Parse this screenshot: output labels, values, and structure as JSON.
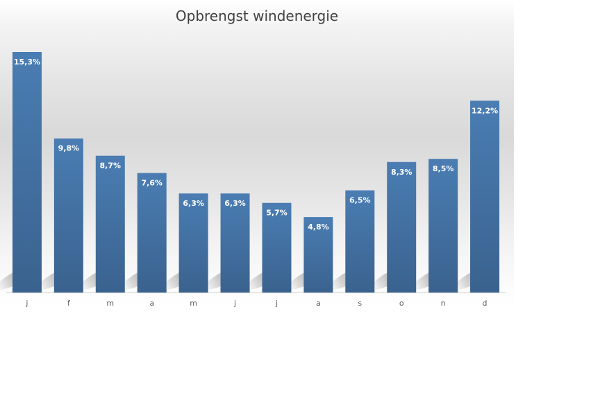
{
  "chart_data": {
    "type": "bar",
    "title": "Opbrengst windenergie",
    "xlabel": "",
    "ylabel": "",
    "categories": [
      "j",
      "f",
      "m",
      "a",
      "m",
      "j",
      "j",
      "a",
      "s",
      "o",
      "n",
      "d"
    ],
    "values": [
      15.3,
      9.8,
      8.7,
      7.6,
      6.3,
      6.3,
      5.7,
      4.8,
      6.5,
      8.3,
      8.5,
      12.2
    ],
    "data_labels": [
      "15,3%",
      "9,8%",
      "8,7%",
      "7,6%",
      "6,3%",
      "6,3%",
      "5,7%",
      "4,8%",
      "6,5%",
      "8,3%",
      "8,5%",
      "12,2%"
    ],
    "ylim": [
      0,
      15.3
    ],
    "grid": false,
    "legend": "none",
    "colors": {
      "bar_top": "#4a7db3",
      "bar_bottom": "#3a628e",
      "title": "#404040",
      "tick_label": "#595959"
    }
  }
}
